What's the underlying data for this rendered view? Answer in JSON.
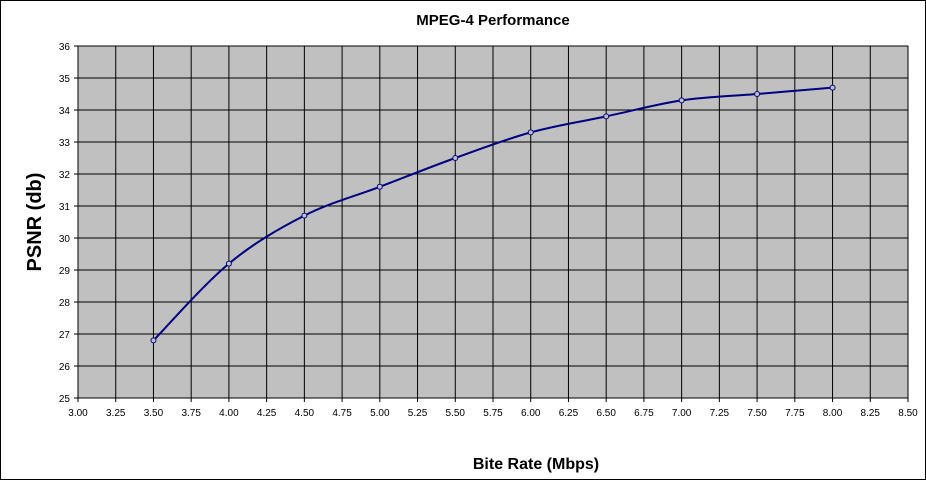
{
  "chart_data": {
    "type": "line",
    "title": "MPEG-4 Performance",
    "xlabel": "Bite Rate (Mbps)",
    "ylabel": "PSNR (db)",
    "xlim": [
      3.0,
      8.5
    ],
    "ylim": [
      25,
      36
    ],
    "x_ticks": [
      "3.00",
      "3.25",
      "3.50",
      "3.75",
      "4.00",
      "4.25",
      "4.50",
      "4.75",
      "5.00",
      "5.25",
      "5.50",
      "5.75",
      "6.00",
      "6.25",
      "6.50",
      "6.75",
      "7.00",
      "7.25",
      "7.50",
      "7.75",
      "8.00",
      "8.25",
      "8.50"
    ],
    "y_ticks": [
      "25",
      "26",
      "27",
      "28",
      "29",
      "30",
      "31",
      "32",
      "33",
      "34",
      "35",
      "36"
    ],
    "grid": true,
    "legend": "none",
    "colors": {
      "plot_bg": "#c0c0c0",
      "line": "#000080",
      "grid": "#000000"
    },
    "series": [
      {
        "x": [
          3.5,
          4.0,
          4.5,
          5.0,
          5.5,
          6.0,
          6.5,
          7.0,
          7.5,
          8.0
        ],
        "y": [
          26.8,
          29.2,
          30.7,
          31.6,
          32.5,
          33.3,
          33.8,
          34.3,
          34.5,
          34.7
        ]
      }
    ]
  }
}
